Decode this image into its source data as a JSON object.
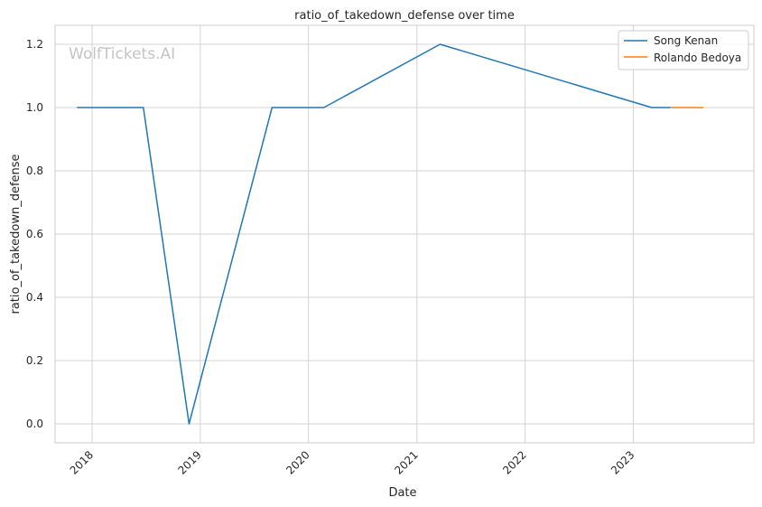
{
  "chart_data": {
    "type": "line",
    "title": "ratio_of_takedown_defense over time",
    "xlabel": "Date",
    "ylabel": "ratio_of_takedown_defense",
    "watermark": "WolfTickets.AI",
    "x_ticks": [
      "2018",
      "2019",
      "2020",
      "2021",
      "2022",
      "2023"
    ],
    "y_ticks": [
      "0.0",
      "0.2",
      "0.4",
      "0.6",
      "0.8",
      "1.0",
      "1.2"
    ],
    "ylim": [
      -0.06,
      1.26
    ],
    "xlim": [
      "2017-08-29",
      "2024-02-12"
    ],
    "grid": true,
    "legend_position": "top-right",
    "series": [
      {
        "name": "Song Kenan",
        "color": "#1f77b4",
        "points": [
          {
            "x": "2017-11-11",
            "y": 1.0
          },
          {
            "x": "2018-06-23",
            "y": 1.0
          },
          {
            "x": "2018-11-24",
            "y": 0.0
          },
          {
            "x": "2019-08-31",
            "y": 1.0
          },
          {
            "x": "2020-02-22",
            "y": 1.0
          },
          {
            "x": "2021-03-20",
            "y": 1.2
          },
          {
            "x": "2023-03-04",
            "y": 1.0
          },
          {
            "x": "2023-05-06",
            "y": 1.0
          }
        ]
      },
      {
        "name": "Rolando Bedoya",
        "color": "#ff7f0e",
        "points": [
          {
            "x": "2023-05-06",
            "y": 1.0
          },
          {
            "x": "2023-08-26",
            "y": 1.0
          }
        ]
      }
    ]
  }
}
